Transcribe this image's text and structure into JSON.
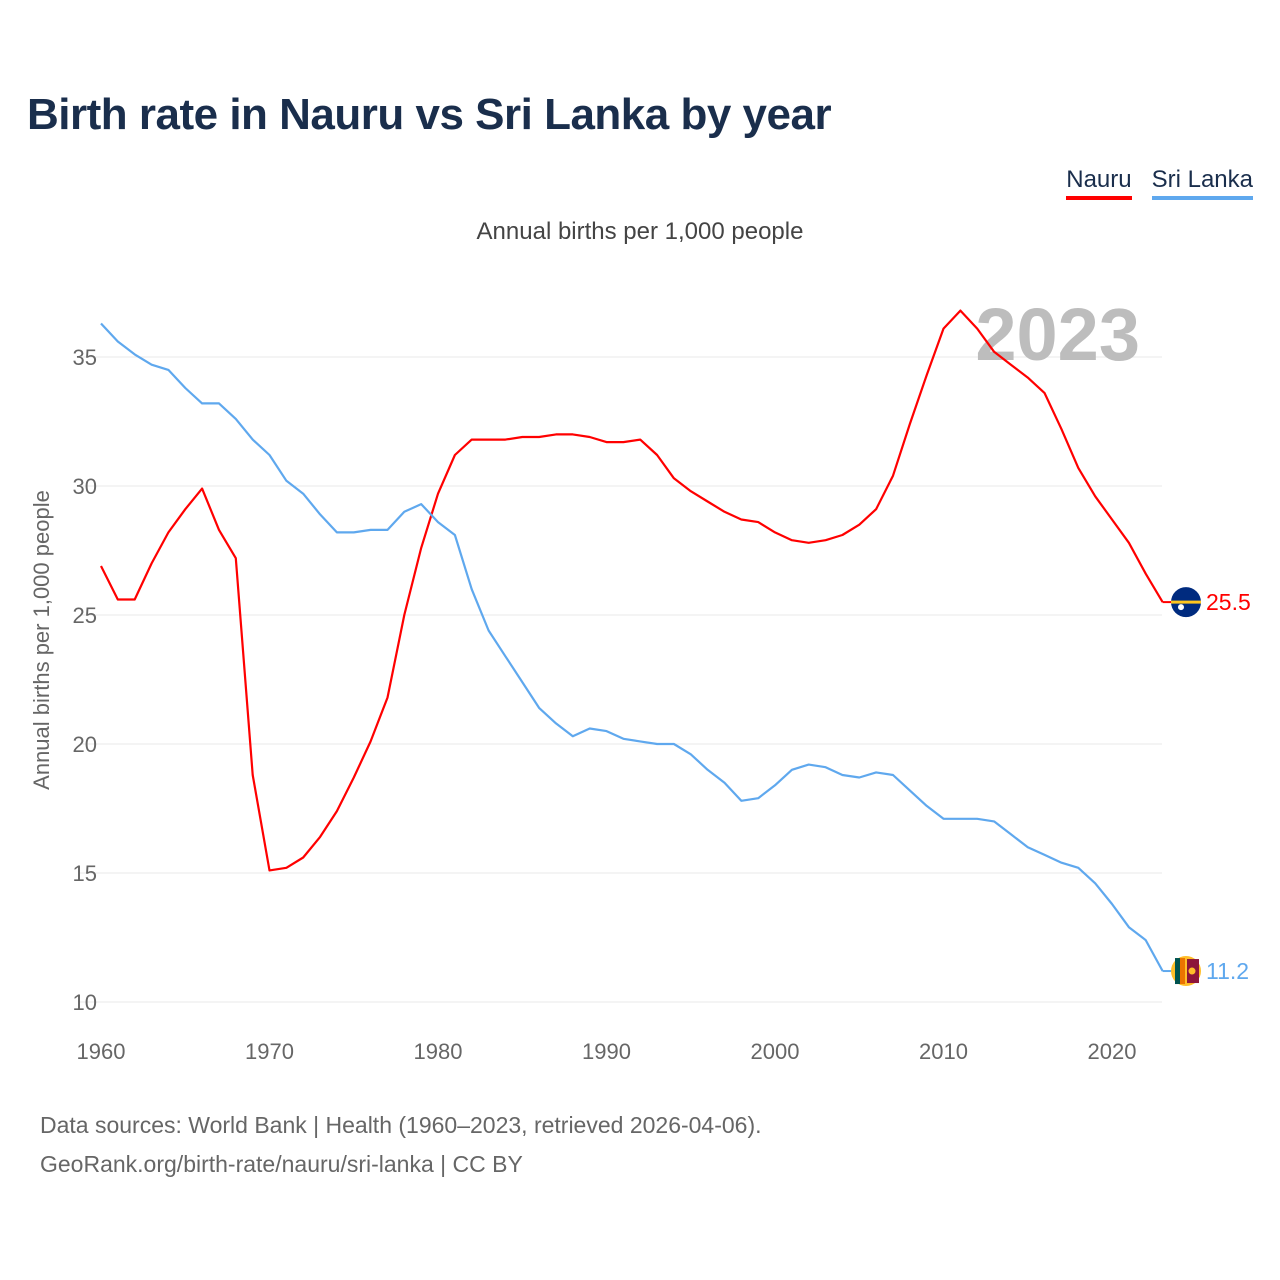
{
  "title": "Birth rate in Nauru vs Sri Lanka by year",
  "footer": {
    "line1": "Data sources: World Bank | Health (1960–2023, retrieved 2026-04-06).",
    "line2": "GeoRank.org/birth-rate/nauru/sri-lanka | CC BY"
  },
  "chart_data": {
    "type": "line",
    "title": "Birth rate in Nauru vs Sri Lanka by year",
    "subtitle": "Annual births per 1,000 people",
    "xlabel": "",
    "ylabel": "Annual births per 1,000 people",
    "xlim": [
      1960,
      2023
    ],
    "ylim": [
      10,
      37
    ],
    "xticks": [
      1960,
      1970,
      1980,
      1990,
      2000,
      2010,
      2020
    ],
    "yticks": [
      10,
      15,
      20,
      25,
      30,
      35
    ],
    "grid": true,
    "legend_position": "top-right",
    "year_label": "2023",
    "x_start": 1960,
    "series": [
      {
        "name": "Nauru",
        "color": "#ff0000",
        "end_label": "25.5",
        "values": [
          26.9,
          25.6,
          25.6,
          27.0,
          28.2,
          29.1,
          29.9,
          28.3,
          27.2,
          18.8,
          15.1,
          15.2,
          15.6,
          16.4,
          17.4,
          18.7,
          20.1,
          21.8,
          25.0,
          27.6,
          29.7,
          31.2,
          31.8,
          31.8,
          31.8,
          31.9,
          31.9,
          32.0,
          32.0,
          31.9,
          31.7,
          31.7,
          31.8,
          31.2,
          30.3,
          29.8,
          29.4,
          29.0,
          28.7,
          28.6,
          28.2,
          27.9,
          27.8,
          27.9,
          28.1,
          28.5,
          29.1,
          30.4,
          32.4,
          34.3,
          36.1,
          36.8,
          36.1,
          35.2,
          34.7,
          34.2,
          33.6,
          32.2,
          30.7,
          29.6,
          28.7,
          27.8,
          26.6,
          25.5
        ]
      },
      {
        "name": "Sri Lanka",
        "color": "#5fa8ee",
        "end_label": "11.2",
        "values": [
          36.3,
          35.6,
          35.1,
          34.7,
          34.5,
          33.8,
          33.2,
          33.2,
          32.6,
          31.8,
          31.2,
          30.2,
          29.7,
          28.9,
          28.2,
          28.2,
          28.3,
          28.3,
          29.0,
          29.3,
          28.6,
          28.1,
          26.0,
          24.4,
          23.4,
          22.4,
          21.4,
          20.8,
          20.3,
          20.6,
          20.5,
          20.2,
          20.1,
          20.0,
          20.0,
          19.6,
          19.0,
          18.5,
          17.8,
          17.9,
          18.4,
          19.0,
          19.2,
          19.1,
          18.8,
          18.7,
          18.9,
          18.8,
          18.2,
          17.6,
          17.1,
          17.1,
          17.1,
          17.0,
          16.5,
          16.0,
          15.7,
          15.4,
          15.2,
          14.6,
          13.8,
          12.9,
          12.4,
          11.2
        ]
      }
    ]
  }
}
